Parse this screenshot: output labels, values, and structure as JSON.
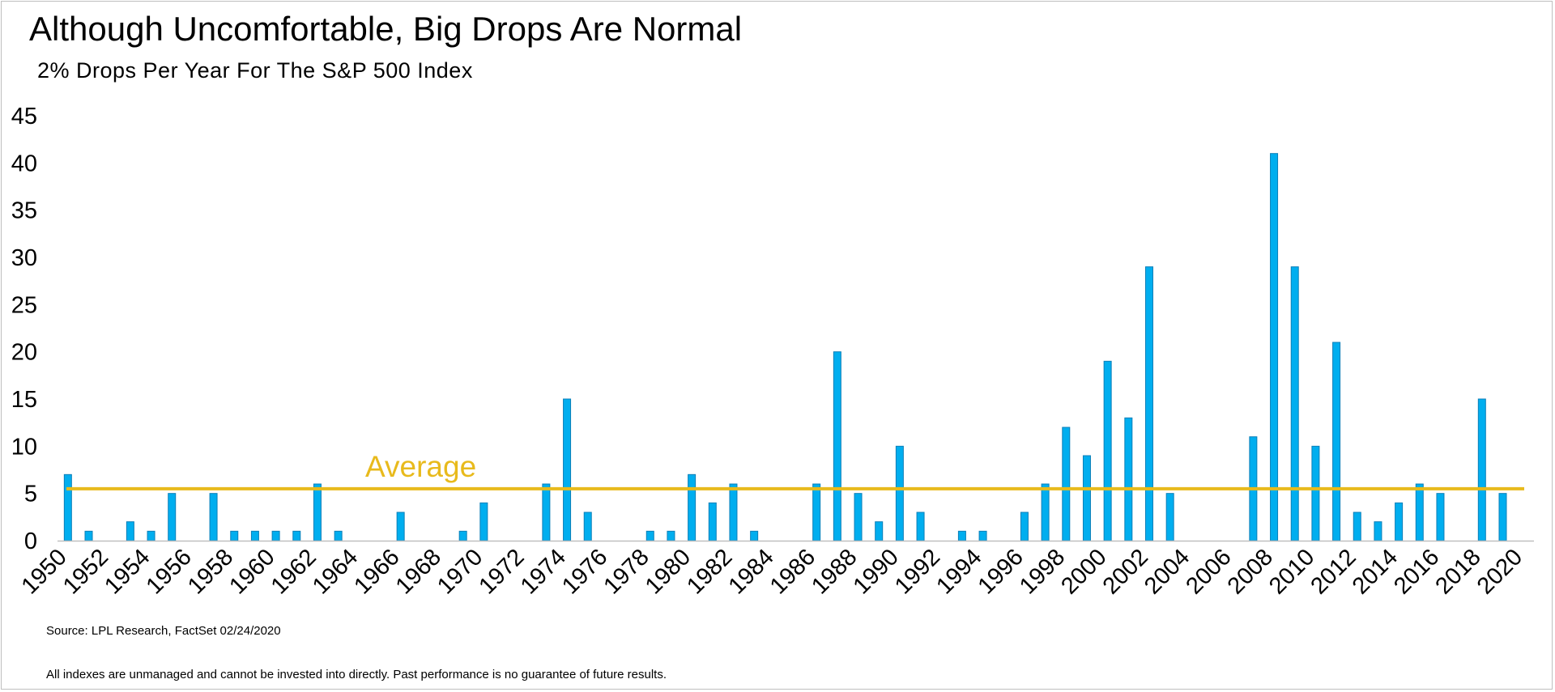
{
  "title": "Although Uncomfortable, Big Drops Are Normal",
  "subtitle": "2% Drops Per Year For The S&P 500 Index",
  "source": "Source: LPL Research, FactSet 02/24/2020",
  "disclaimer": "All indexes are unmanaged and cannot be invested into directly. Past performance is no guarantee of future results.",
  "colors": {
    "bar": "#00AEEF",
    "bar_edge": "#0B7FB8",
    "average": "#E8BA1C",
    "axis": "#BFBFBF"
  },
  "chart_data": {
    "type": "bar",
    "title": "Although Uncomfortable, Big Drops Are Normal",
    "subtitle": "2% Drops Per Year For The S&P 500 Index",
    "xlabel": "",
    "ylabel": "",
    "ylim": [
      0,
      45
    ],
    "yticks": [
      0,
      5,
      10,
      15,
      20,
      25,
      30,
      35,
      40,
      45
    ],
    "grid": false,
    "categories": [
      1950,
      1951,
      1952,
      1953,
      1954,
      1955,
      1956,
      1957,
      1958,
      1959,
      1960,
      1961,
      1962,
      1963,
      1964,
      1965,
      1966,
      1967,
      1968,
      1969,
      1970,
      1971,
      1972,
      1973,
      1974,
      1975,
      1976,
      1977,
      1978,
      1979,
      1980,
      1981,
      1982,
      1983,
      1984,
      1985,
      1986,
      1987,
      1988,
      1989,
      1990,
      1991,
      1992,
      1993,
      1994,
      1995,
      1996,
      1997,
      1998,
      1999,
      2000,
      2001,
      2002,
      2003,
      2004,
      2005,
      2006,
      2007,
      2008,
      2009,
      2010,
      2011,
      2012,
      2013,
      2014,
      2015,
      2016,
      2017,
      2018,
      2019,
      2020
    ],
    "xtick_labels": [
      "1950",
      "1952",
      "1954",
      "1956",
      "1958",
      "1960",
      "1962",
      "1964",
      "1966",
      "1968",
      "1970",
      "1972",
      "1974",
      "1976",
      "1978",
      "1980",
      "1982",
      "1984",
      "1986",
      "1988",
      "1990",
      "1992",
      "1994",
      "1996",
      "1998",
      "2000",
      "2002",
      "2004",
      "2006",
      "2008",
      "2010",
      "2012",
      "2014",
      "2016",
      "2018",
      "2020"
    ],
    "values": [
      7,
      1,
      0,
      2,
      1,
      5,
      0,
      5,
      1,
      1,
      1,
      1,
      6,
      1,
      0,
      0,
      3,
      0,
      0,
      1,
      4,
      0,
      0,
      6,
      15,
      3,
      0,
      0,
      1,
      1,
      7,
      4,
      6,
      1,
      0,
      0,
      6,
      20,
      5,
      2,
      10,
      3,
      0,
      1,
      1,
      0,
      3,
      6,
      12,
      9,
      19,
      13,
      29,
      5,
      0,
      0,
      0,
      11,
      41,
      29,
      10,
      21,
      3,
      2,
      4,
      6,
      5,
      0,
      15,
      5,
      0
    ],
    "average": {
      "label": "Average",
      "value": 5.5
    }
  }
}
